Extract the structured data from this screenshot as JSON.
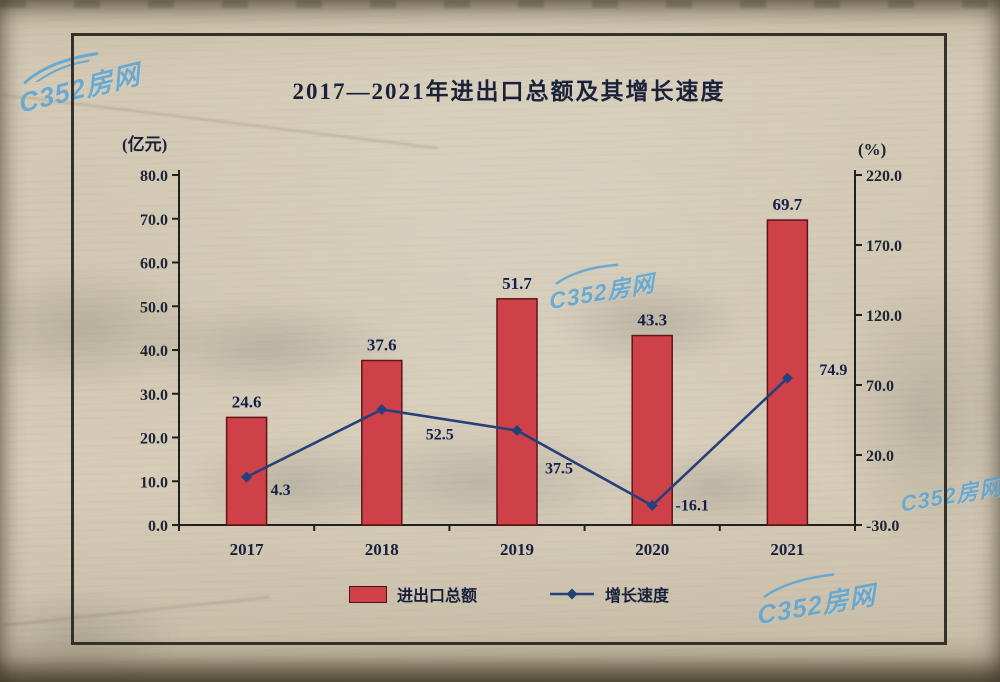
{
  "page": {
    "watermark_text": "C352房网"
  },
  "chart_data": {
    "type": "bar+line",
    "title": "2017—2021年进出口总额及其增长速度",
    "left_axis_unit": "(亿元)",
    "right_axis_unit": "(%)",
    "categories": [
      "2017",
      "2018",
      "2019",
      "2020",
      "2021"
    ],
    "series": [
      {
        "name": "进出口总额",
        "type": "bar",
        "axis": "left",
        "values": [
          24.6,
          37.6,
          51.7,
          43.3,
          69.7
        ],
        "color": "#ce4149"
      },
      {
        "name": "增长速度",
        "type": "line",
        "axis": "right",
        "values": [
          4.3,
          52.5,
          37.5,
          -16.1,
          74.9
        ],
        "color": "#26407a"
      }
    ],
    "left_axis": {
      "min": 0,
      "max": 80,
      "ticks": [
        "80.0",
        "70.0",
        "60.0",
        "50.0",
        "40.0",
        "30.0",
        "20.0",
        "10.0",
        "0.0"
      ]
    },
    "right_axis": {
      "min": -30,
      "max": 220,
      "ticks": [
        "220.0",
        "170.0",
        "120.0",
        "70.0",
        "20.0",
        "-30.0"
      ]
    },
    "legend_position": "bottom",
    "grid": false
  }
}
